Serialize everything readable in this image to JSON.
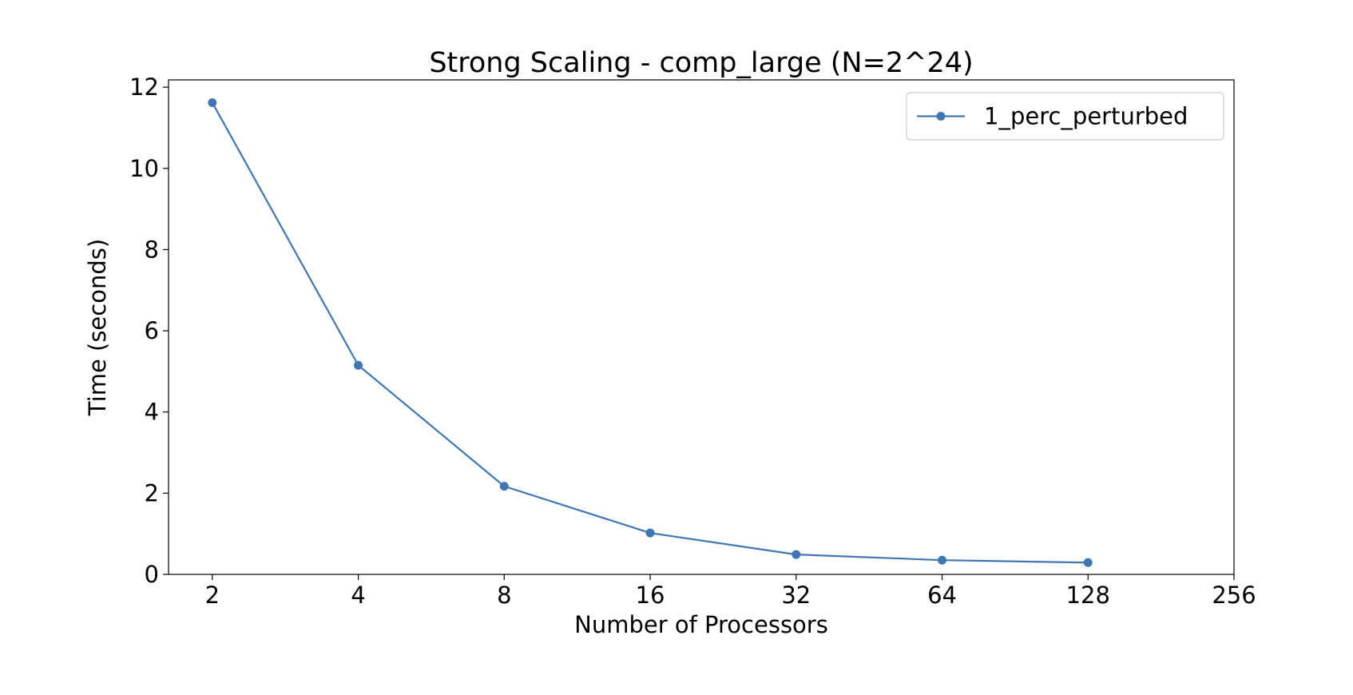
{
  "chart_data": {
    "type": "line",
    "title": "Strong Scaling - comp_large (N=2^24)",
    "xlabel": "Number of Processors",
    "ylabel": "Time (seconds)",
    "x_scale": "log2",
    "xlim": [
      2,
      256
    ],
    "ylim": [
      0,
      12
    ],
    "x_ticks": [
      2,
      4,
      8,
      16,
      32,
      64,
      128,
      256
    ],
    "y_ticks": [
      0,
      2,
      4,
      6,
      8,
      10,
      12
    ],
    "grid": false,
    "legend_position": "top-right",
    "series": [
      {
        "name": "1_perc_perturbed",
        "color": "#3f77b4",
        "marker": "circle",
        "x": [
          2,
          4,
          8,
          16,
          32,
          64,
          128
        ],
        "y": [
          11.62,
          5.15,
          2.17,
          1.02,
          0.49,
          0.35,
          0.29
        ]
      }
    ]
  }
}
